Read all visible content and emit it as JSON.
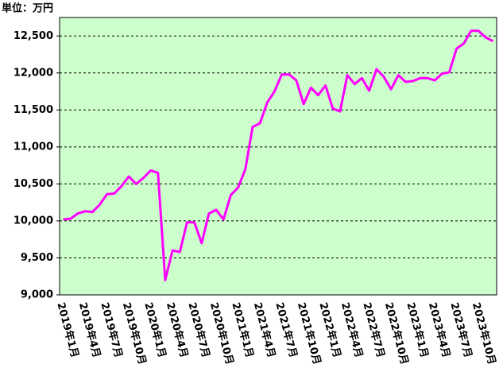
{
  "chart_data": {
    "type": "line",
    "unit_label": "単位：万円",
    "categories": [
      "2019年1月",
      null,
      null,
      "2019年4月",
      null,
      null,
      "2019年7月",
      null,
      null,
      "2019年10月",
      null,
      null,
      "2020年1月",
      null,
      null,
      "2020年4月",
      null,
      null,
      "2020年7月",
      null,
      null,
      "2020年10月",
      null,
      null,
      "2021年1月",
      null,
      null,
      "2021年4月",
      null,
      null,
      "2021年7月",
      null,
      null,
      "2021年10月",
      null,
      null,
      "2022年1月",
      null,
      null,
      "2022年4月",
      null,
      null,
      "2022年7月",
      null,
      null,
      "2022年10月",
      null,
      null,
      "2023年1月",
      null,
      null,
      "2023年4月",
      null,
      null,
      "2023年7月",
      null,
      null,
      "2023年10月",
      null,
      null
    ],
    "series": [
      {
        "color": "#ff00ff",
        "values": [
          10020,
          10030,
          10100,
          10130,
          10120,
          10220,
          10360,
          10370,
          10470,
          10600,
          10500,
          10580,
          10680,
          10650,
          9200,
          9600,
          9580,
          9980,
          9980,
          9700,
          10100,
          10150,
          10020,
          10350,
          10450,
          10700,
          11270,
          11320,
          11600,
          11750,
          11980,
          11980,
          11900,
          11580,
          11800,
          11700,
          11830,
          11520,
          11480,
          11970,
          11850,
          11930,
          11760,
          12050,
          11950,
          11780,
          11970,
          11880,
          11890,
          11930,
          11930,
          11900,
          11990,
          12010,
          12330,
          12400,
          12570,
          12570,
          12480,
          12430
        ]
      }
    ],
    "ylim": [
      9000,
      12750
    ],
    "yticks": [
      {
        "value": 9000,
        "label": "9,000"
      },
      {
        "value": 9500,
        "label": "9,500"
      },
      {
        "value": 10000,
        "label": "10,000"
      },
      {
        "value": 10500,
        "label": "10,500"
      },
      {
        "value": 11000,
        "label": "11,000"
      },
      {
        "value": 11500,
        "label": "11,500"
      },
      {
        "value": 12000,
        "label": "12,000"
      },
      {
        "value": 12500,
        "label": "12,500"
      }
    ],
    "grid": true,
    "background": "#ccffcc"
  }
}
